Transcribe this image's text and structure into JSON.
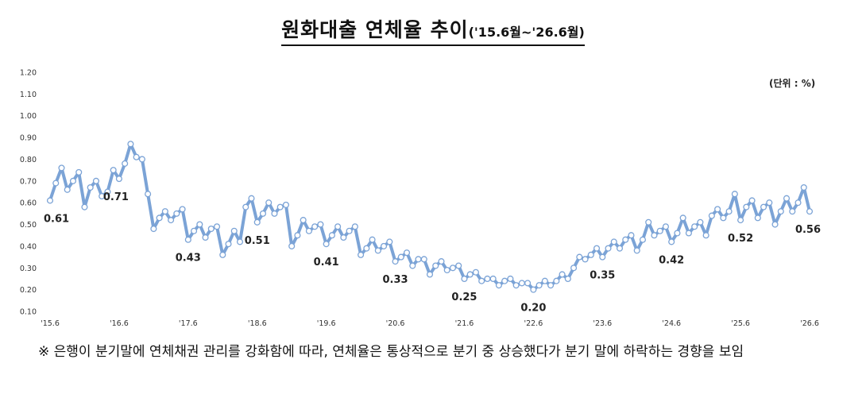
{
  "title": {
    "main": "원화대출 연체율 추이",
    "sub": "('15.6월~'26.6월)"
  },
  "unit_label": "(단위 : %)",
  "note": "※ 은행이 분기말에 연체채권 관리를 강화함에 따라, 연체율은 통상적으로 분기 중 상승했다가 분기 말에 하락하는 경향을 보임",
  "chart_data": {
    "type": "line",
    "title": "원화대출 연체율 추이",
    "ylabel": "",
    "xlabel": "",
    "ylim": [
      0.1,
      1.2
    ],
    "yticks": [
      "0.10",
      "0.20",
      "0.30",
      "0.40",
      "0.50",
      "0.60",
      "0.70",
      "0.80",
      "0.90",
      "1.00",
      "1.10",
      "1.20"
    ],
    "xticks": [
      "'15.6",
      "'16.6",
      "'17.6",
      "'18.6",
      "'19.6",
      "'20.6",
      "'21.6",
      "'22.6",
      "'23.6",
      "'24.6",
      "'25.6",
      "'26.6"
    ],
    "grid": false,
    "line_color": "#7ba3d6",
    "marker_fill": "#ffffff",
    "x": [
      "'15.6",
      "'15.7",
      "'15.8",
      "'15.9",
      "'15.10",
      "'15.11",
      "'15.12",
      "'16.1",
      "'16.2",
      "'16.3",
      "'16.4",
      "'16.5",
      "'16.6",
      "'16.7",
      "'16.8",
      "'16.9",
      "'16.10",
      "'16.11",
      "'16.12",
      "'17.1",
      "'17.2",
      "'17.3",
      "'17.4",
      "'17.5",
      "'17.6",
      "'17.7",
      "'17.8",
      "'17.9",
      "'17.10",
      "'17.11",
      "'17.12",
      "'18.1",
      "'18.2",
      "'18.3",
      "'18.4",
      "'18.5",
      "'18.6",
      "'18.7",
      "'18.8",
      "'18.9",
      "'18.10",
      "'18.11",
      "'18.12",
      "'19.1",
      "'19.2",
      "'19.3",
      "'19.4",
      "'19.5",
      "'19.6",
      "'19.7",
      "'19.8",
      "'19.9",
      "'19.10",
      "'19.11",
      "'19.12",
      "'20.1",
      "'20.2",
      "'20.3",
      "'20.4",
      "'20.5",
      "'20.6",
      "'20.7",
      "'20.8",
      "'20.9",
      "'20.10",
      "'20.11",
      "'20.12",
      "'21.1",
      "'21.2",
      "'21.3",
      "'21.4",
      "'21.5",
      "'21.6",
      "'21.7",
      "'21.8",
      "'21.9",
      "'21.10",
      "'21.11",
      "'21.12",
      "'22.1",
      "'22.2",
      "'22.3",
      "'22.4",
      "'22.5",
      "'22.6",
      "'22.7",
      "'22.8",
      "'22.9",
      "'22.10",
      "'22.11",
      "'22.12",
      "'23.1",
      "'23.2",
      "'23.3",
      "'23.4",
      "'23.5",
      "'23.6",
      "'23.7",
      "'23.8",
      "'23.9",
      "'23.10",
      "'23.11",
      "'23.12",
      "'24.1",
      "'24.2",
      "'24.3",
      "'24.4",
      "'24.5",
      "'24.6",
      "'24.7",
      "'24.8",
      "'24.9",
      "'24.10",
      "'24.11",
      "'24.12",
      "'25.1",
      "'25.2",
      "'25.3",
      "'25.4",
      "'25.5",
      "'25.6",
      "'25.7",
      "'25.8",
      "'25.9",
      "'25.10",
      "'25.11",
      "'25.12",
      "'26.1",
      "'26.2",
      "'26.3",
      "'26.4",
      "'26.5",
      "'26.6"
    ],
    "values": [
      0.61,
      0.69,
      0.76,
      0.66,
      0.7,
      0.74,
      0.58,
      0.67,
      0.7,
      0.63,
      0.65,
      0.75,
      0.71,
      0.78,
      0.87,
      0.81,
      0.8,
      0.64,
      0.48,
      0.53,
      0.56,
      0.52,
      0.55,
      0.57,
      0.43,
      0.47,
      0.5,
      0.44,
      0.48,
      0.49,
      0.36,
      0.41,
      0.47,
      0.42,
      0.58,
      0.62,
      0.51,
      0.55,
      0.6,
      0.55,
      0.58,
      0.59,
      0.4,
      0.45,
      0.52,
      0.47,
      0.49,
      0.5,
      0.41,
      0.45,
      0.49,
      0.44,
      0.47,
      0.49,
      0.36,
      0.39,
      0.43,
      0.38,
      0.4,
      0.42,
      0.33,
      0.35,
      0.37,
      0.31,
      0.34,
      0.34,
      0.27,
      0.31,
      0.33,
      0.29,
      0.3,
      0.31,
      0.25,
      0.27,
      0.28,
      0.24,
      0.25,
      0.25,
      0.22,
      0.24,
      0.25,
      0.22,
      0.23,
      0.23,
      0.2,
      0.22,
      0.24,
      0.22,
      0.24,
      0.27,
      0.25,
      0.3,
      0.35,
      0.34,
      0.36,
      0.39,
      0.35,
      0.39,
      0.42,
      0.39,
      0.43,
      0.45,
      0.38,
      0.43,
      0.51,
      0.45,
      0.47,
      0.49,
      0.42,
      0.46,
      0.53,
      0.46,
      0.49,
      0.51,
      0.45,
      0.54,
      0.57,
      0.53,
      0.56,
      0.64,
      0.52,
      0.58,
      0.61,
      0.53,
      0.58,
      0.6,
      0.5,
      0.56,
      0.62,
      0.56,
      0.6,
      0.67,
      0.56
    ],
    "data_labels": [
      {
        "x": "'15.6",
        "text": "0.61"
      },
      {
        "x": "'16.6",
        "text": "0.71"
      },
      {
        "x": "'17.6",
        "text": "0.43"
      },
      {
        "x": "'18.6",
        "text": "0.51"
      },
      {
        "x": "'19.6",
        "text": "0.41"
      },
      {
        "x": "'20.6",
        "text": "0.33"
      },
      {
        "x": "'21.6",
        "text": "0.25"
      },
      {
        "x": "'22.6",
        "text": "0.20"
      },
      {
        "x": "'23.6",
        "text": "0.35"
      },
      {
        "x": "'24.6",
        "text": "0.42"
      },
      {
        "x": "'25.6",
        "text": "0.52"
      },
      {
        "x": "'26.6",
        "text": "0.56"
      }
    ]
  }
}
